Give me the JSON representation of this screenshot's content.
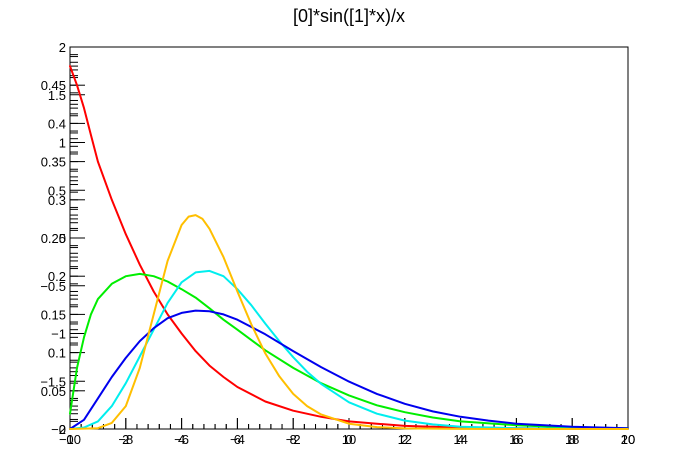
{
  "chart_data": {
    "type": "line",
    "title": "[0]*sin([1]*x)/x",
    "frame": {
      "x_range": [
        0,
        20
      ],
      "y_range": [
        0,
        0.5
      ]
    },
    "overlay_axes": [
      {
        "name": "axis-a",
        "x_range": [
          -10,
          10
        ],
        "x_ticks": [
          {
            "v": -10,
            "label": "−10"
          },
          {
            "v": -8,
            "label": "−8"
          },
          {
            "v": -6,
            "label": "−6"
          },
          {
            "v": -4,
            "label": "−4"
          },
          {
            "v": -2,
            "label": "−2"
          },
          {
            "v": 0,
            "label": "0"
          },
          {
            "v": 2,
            "label": "2"
          },
          {
            "v": 4,
            "label": "4"
          },
          {
            "v": 6,
            "label": "6"
          },
          {
            "v": 8,
            "label": "8"
          },
          {
            "v": 10,
            "label": "10"
          }
        ],
        "y_range": [
          -2,
          2
        ],
        "y_ticks": [
          {
            "v": -2,
            "label": "−2"
          },
          {
            "v": -1.5,
            "label": "−1.5"
          },
          {
            "v": -1,
            "label": "−1"
          },
          {
            "v": -0.5,
            "label": "−0.5"
          },
          {
            "v": 0,
            "label": "0"
          },
          {
            "v": 0.5,
            "label": "0.5"
          },
          {
            "v": 1,
            "label": "1"
          },
          {
            "v": 1.5,
            "label": "1.5"
          },
          {
            "v": 2,
            "label": "2"
          }
        ]
      },
      {
        "name": "axis-b",
        "x_range": [
          0,
          20
        ],
        "x_ticks": [
          {
            "v": 0,
            "label": "0"
          },
          {
            "v": 2,
            "label": "2"
          },
          {
            "v": 4,
            "label": "4"
          },
          {
            "v": 6,
            "label": "6"
          },
          {
            "v": 8,
            "label": "8"
          },
          {
            "v": 10,
            "label": "10"
          },
          {
            "v": 12,
            "label": "12"
          },
          {
            "v": 14,
            "label": "14"
          },
          {
            "v": 16,
            "label": "16"
          },
          {
            "v": 18,
            "label": "18"
          },
          {
            "v": 20,
            "label": "20"
          }
        ],
        "y_range": [
          0,
          0.5
        ],
        "y_ticks": [
          {
            "v": 0,
            "label": "0"
          },
          {
            "v": 0.05,
            "label": "0.05"
          },
          {
            "v": 0.1,
            "label": "0.1"
          },
          {
            "v": 0.15,
            "label": "0.15"
          },
          {
            "v": 0.2,
            "label": "0.2"
          },
          {
            "v": 0.25,
            "label": "0.25"
          },
          {
            "v": 0.3,
            "label": "0.3"
          },
          {
            "v": 0.35,
            "label": "0.35"
          },
          {
            "v": 0.4,
            "label": "0.4"
          },
          {
            "v": 0.45,
            "label": "0.45"
          }
        ]
      }
    ],
    "grid": false,
    "legend": "none",
    "series": [
      {
        "color": "#ff0000",
        "x": [
          0,
          0.25,
          0.5,
          0.75,
          1,
          1.5,
          2,
          2.5,
          3,
          3.5,
          4,
          4.5,
          5,
          5.5,
          6,
          7,
          8,
          9,
          10,
          11,
          12,
          13,
          14,
          16,
          18,
          20
        ],
        "y": [
          0.475,
          0.45,
          0.42,
          0.385,
          0.35,
          0.3,
          0.255,
          0.215,
          0.18,
          0.15,
          0.125,
          0.102,
          0.083,
          0.068,
          0.055,
          0.036,
          0.024,
          0.016,
          0.01,
          0.007,
          0.004,
          0.003,
          0.002,
          0.001,
          0.0005,
          0.0002
        ]
      },
      {
        "color": "#00ee00",
        "x": [
          0,
          0.25,
          0.5,
          0.75,
          1,
          1.5,
          2,
          2.5,
          3,
          3.5,
          4,
          4.5,
          5,
          5.5,
          6,
          7,
          8,
          9,
          10,
          11,
          12,
          13,
          14,
          16,
          18,
          20
        ],
        "y": [
          0.02,
          0.08,
          0.12,
          0.15,
          0.17,
          0.19,
          0.2,
          0.203,
          0.2,
          0.193,
          0.183,
          0.172,
          0.158,
          0.143,
          0.13,
          0.103,
          0.08,
          0.06,
          0.044,
          0.031,
          0.022,
          0.015,
          0.01,
          0.005,
          0.002,
          0.001
        ]
      },
      {
        "color": "#00eeee",
        "x": [
          0,
          0.5,
          1,
          1.5,
          2,
          2.5,
          3,
          3.5,
          4,
          4.5,
          5,
          5.5,
          6,
          6.5,
          7,
          7.5,
          8,
          8.5,
          9,
          10,
          11,
          12,
          13,
          14,
          16,
          18,
          20
        ],
        "y": [
          0,
          0.002,
          0.01,
          0.03,
          0.06,
          0.095,
          0.13,
          0.165,
          0.192,
          0.205,
          0.207,
          0.2,
          0.183,
          0.162,
          0.138,
          0.115,
          0.094,
          0.075,
          0.059,
          0.035,
          0.02,
          0.011,
          0.006,
          0.003,
          0.001,
          0.0002,
          0
        ]
      },
      {
        "color": "#0000ee",
        "x": [
          0,
          0.5,
          1,
          1.5,
          2,
          2.5,
          3,
          3.5,
          4,
          4.5,
          5,
          5.5,
          6,
          7,
          8,
          9,
          10,
          11,
          12,
          13,
          14,
          15,
          16,
          17,
          18,
          19,
          20
        ],
        "y": [
          0,
          0.012,
          0.04,
          0.068,
          0.093,
          0.115,
          0.132,
          0.145,
          0.152,
          0.155,
          0.154,
          0.15,
          0.143,
          0.124,
          0.102,
          0.081,
          0.062,
          0.046,
          0.033,
          0.023,
          0.016,
          0.011,
          0.007,
          0.005,
          0.003,
          0.002,
          0.001
        ]
      },
      {
        "color": "#ffbf00",
        "x": [
          0,
          1,
          1.5,
          2,
          2.5,
          3,
          3.5,
          4,
          4.25,
          4.5,
          4.75,
          5,
          5.5,
          6,
          6.5,
          7,
          7.5,
          8,
          8.5,
          9,
          10,
          11,
          12,
          14,
          16,
          18,
          20
        ],
        "y": [
          0,
          0.001,
          0.008,
          0.03,
          0.08,
          0.15,
          0.22,
          0.267,
          0.278,
          0.28,
          0.275,
          0.262,
          0.225,
          0.18,
          0.137,
          0.099,
          0.069,
          0.046,
          0.03,
          0.019,
          0.007,
          0.0025,
          0.0008,
          0.0001,
          0,
          0,
          0
        ]
      }
    ]
  }
}
